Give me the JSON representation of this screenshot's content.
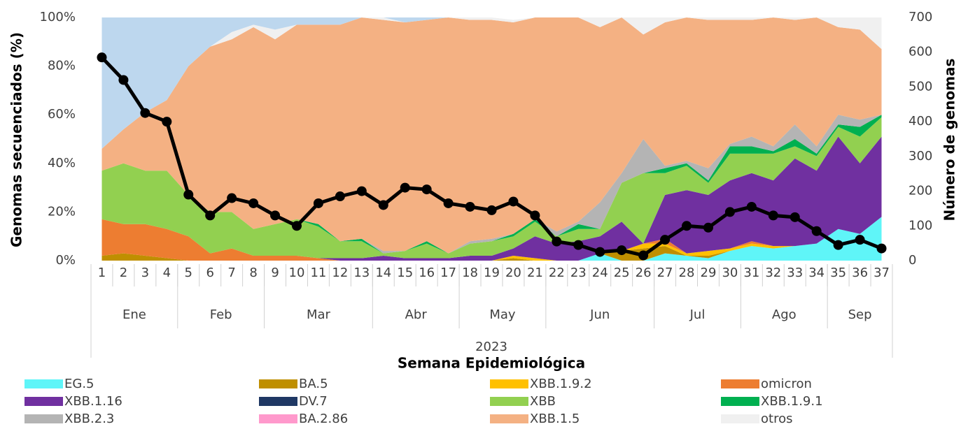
{
  "chart_data": {
    "type": "area",
    "y_label": "Genomas secuenciados (%)",
    "y2_label": "Número de genomas",
    "x_label": "Semana Epidemiológica",
    "year": "2023",
    "categories": [
      "1",
      "2",
      "3",
      "4",
      "5",
      "6",
      "7",
      "8",
      "9",
      "10",
      "11",
      "12",
      "13",
      "14",
      "15",
      "16",
      "17",
      "18",
      "19",
      "20",
      "21",
      "22",
      "23",
      "24",
      "25",
      "26",
      "27",
      "28",
      "29",
      "30",
      "31",
      "32",
      "33",
      "34",
      "35",
      "36",
      "37"
    ],
    "months": [
      {
        "label": "Ene",
        "first": "1",
        "last": "4"
      },
      {
        "label": "Feb",
        "first": "5",
        "last": "8"
      },
      {
        "label": "Mar",
        "first": "9",
        "last": "13"
      },
      {
        "label": "Abr",
        "first": "14",
        "last": "17"
      },
      {
        "label": "May",
        "first": "18",
        "last": "21"
      },
      {
        "label": "Jun",
        "first": "22",
        "last": "26"
      },
      {
        "label": "Jul",
        "first": "27",
        "last": "30"
      },
      {
        "label": "Ago",
        "first": "31",
        "last": "34"
      },
      {
        "label": "Sep",
        "first": "35",
        "last": "37"
      }
    ],
    "ylim": [
      0,
      100
    ],
    "yticks": [
      {
        "value": 0,
        "label": "0%"
      },
      {
        "value": 20,
        "label": "20%"
      },
      {
        "value": 40,
        "label": "40%"
      },
      {
        "value": 60,
        "label": "60%"
      },
      {
        "value": 80,
        "label": "80%"
      },
      {
        "value": 100,
        "label": "100%"
      }
    ],
    "y2lim": [
      0,
      700
    ],
    "y2ticks": [
      0,
      100,
      200,
      300,
      400,
      500,
      600,
      700
    ],
    "series": [
      {
        "name": "EG.5",
        "color": "#5ff5f8",
        "values": [
          0,
          0,
          0,
          0,
          0,
          0,
          0,
          0,
          0,
          0,
          0,
          0,
          0,
          0,
          0,
          0,
          0,
          0,
          0,
          0,
          0,
          0,
          0,
          3,
          0,
          0,
          3,
          2,
          1,
          4,
          6,
          5,
          6,
          7,
          13,
          11,
          18
        ]
      },
      {
        "name": "BA.5",
        "color": "#bf8f00",
        "values": [
          2,
          3,
          2,
          1,
          0,
          0,
          0,
          0,
          0,
          0,
          0,
          0,
          0,
          0,
          0,
          0,
          0,
          0,
          0,
          1,
          0,
          0,
          0,
          0,
          4,
          5,
          3,
          0,
          1,
          0,
          0,
          0,
          0,
          0,
          0,
          0,
          0
        ]
      },
      {
        "name": "XBB.1.9.2",
        "color": "#ffc000",
        "values": [
          0,
          0,
          0,
          0,
          0,
          0,
          0,
          0,
          0,
          0,
          0,
          0,
          0,
          0,
          0,
          0,
          0,
          0,
          0,
          1,
          1,
          0,
          0,
          0,
          0,
          2,
          1,
          1,
          2,
          1,
          1,
          1,
          0,
          0,
          0,
          0,
          0
        ]
      },
      {
        "name": "omicron",
        "color": "#ed7d31",
        "values": [
          15,
          12,
          13,
          12,
          10,
          3,
          5,
          2,
          2,
          2,
          1,
          0,
          0,
          0,
          0,
          0,
          0,
          0,
          0,
          0,
          0,
          0,
          0,
          0,
          0,
          0,
          2,
          0,
          0,
          0,
          1,
          0,
          0,
          0,
          0,
          0,
          0
        ]
      },
      {
        "name": "XBB.1.16",
        "color": "#7030a0",
        "values": [
          0,
          0,
          0,
          0,
          0,
          0,
          0,
          0,
          0,
          0,
          0,
          1,
          1,
          2,
          1,
          1,
          1,
          2,
          2,
          3,
          9,
          7,
          8,
          7,
          12,
          0,
          18,
          26,
          23,
          28,
          28,
          27,
          36,
          30,
          38,
          29,
          33
        ]
      },
      {
        "name": "DV.7",
        "color": "#1f3864",
        "values": [
          0,
          0,
          0,
          0,
          0,
          0,
          0,
          0,
          0,
          0,
          0,
          0,
          0,
          0,
          0,
          0,
          0,
          0,
          0,
          0,
          0,
          0,
          0,
          0,
          0,
          0,
          0,
          0,
          0,
          0,
          0,
          0,
          0,
          0,
          0,
          0,
          0
        ]
      },
      {
        "name": "XBB",
        "color": "#92d050",
        "values": [
          20,
          25,
          22,
          24,
          17,
          17,
          15,
          11,
          13,
          15,
          13,
          7,
          7,
          1,
          3,
          6,
          2,
          5,
          6,
          5,
          6,
          3,
          5,
          3,
          16,
          29,
          9,
          10,
          5,
          11,
          8,
          11,
          5,
          6,
          4,
          11,
          8
        ]
      },
      {
        "name": "XBB.1.9.1",
        "color": "#00b050",
        "values": [
          0,
          0,
          0,
          0,
          0,
          0,
          0,
          0,
          0,
          0,
          1,
          0,
          1,
          0,
          0,
          1,
          0,
          0,
          0,
          1,
          1,
          0,
          2,
          0,
          0,
          0,
          2,
          1,
          1,
          3,
          3,
          1,
          3,
          1,
          1,
          4,
          1
        ]
      },
      {
        "name": "XBB.2.3",
        "color": "#b4b4b4",
        "values": [
          0,
          0,
          0,
          0,
          0,
          0,
          0,
          0,
          0,
          0,
          0,
          0,
          0,
          1,
          0,
          0,
          0,
          1,
          1,
          0,
          0,
          2,
          1,
          11,
          4,
          14,
          1,
          1,
          5,
          1,
          4,
          2,
          6,
          3,
          4,
          3,
          0
        ]
      },
      {
        "name": "BA.2.86",
        "color": "#ff99cc",
        "values": [
          0,
          0,
          0,
          0,
          0,
          0,
          0,
          0,
          0,
          0,
          0,
          0,
          0,
          0,
          0,
          0,
          0,
          0,
          0,
          0,
          0,
          0,
          0,
          0,
          0,
          0,
          0,
          0,
          0,
          0,
          0,
          0,
          0,
          0,
          0,
          0,
          0
        ]
      },
      {
        "name": "XBB.1.5",
        "color": "#f4b183",
        "values": [
          9,
          14,
          24,
          29,
          53,
          68,
          71,
          83,
          76,
          80,
          82,
          89,
          91,
          95,
          94,
          91,
          97,
          91,
          90,
          87,
          83,
          88,
          84,
          72,
          64,
          43,
          59,
          59,
          61,
          51,
          48,
          53,
          43,
          53,
          36,
          37,
          27
        ]
      },
      {
        "name": "otros",
        "color": "#f0f0f0",
        "values": [
          0,
          0,
          0,
          0,
          0,
          0,
          3,
          1,
          4,
          0,
          0,
          0,
          0,
          1,
          0,
          0,
          0,
          1,
          1,
          1,
          0,
          0,
          0,
          4,
          0,
          7,
          2,
          0,
          1,
          1,
          1,
          0,
          1,
          0,
          4,
          5,
          13
        ]
      },
      {
        "color": "#bdd7ee",
        "values": [
          54,
          46,
          39,
          34,
          20,
          12,
          6,
          3,
          5,
          3,
          3,
          3,
          0,
          0,
          2,
          1,
          0,
          0,
          0,
          0,
          0,
          0,
          0,
          0,
          0,
          0,
          0,
          0,
          0,
          0,
          0,
          0,
          0,
          0,
          0,
          0,
          0
        ]
      },
      {
        "type": "line",
        "axis": "y2",
        "color": "#000000",
        "values": [
          585,
          520,
          425,
          400,
          190,
          130,
          180,
          165,
          130,
          100,
          165,
          185,
          200,
          160,
          210,
          205,
          165,
          155,
          145,
          170,
          130,
          55,
          45,
          25,
          30,
          15,
          60,
          100,
          95,
          140,
          155,
          130,
          125,
          85,
          45,
          60,
          35
        ]
      }
    ]
  }
}
